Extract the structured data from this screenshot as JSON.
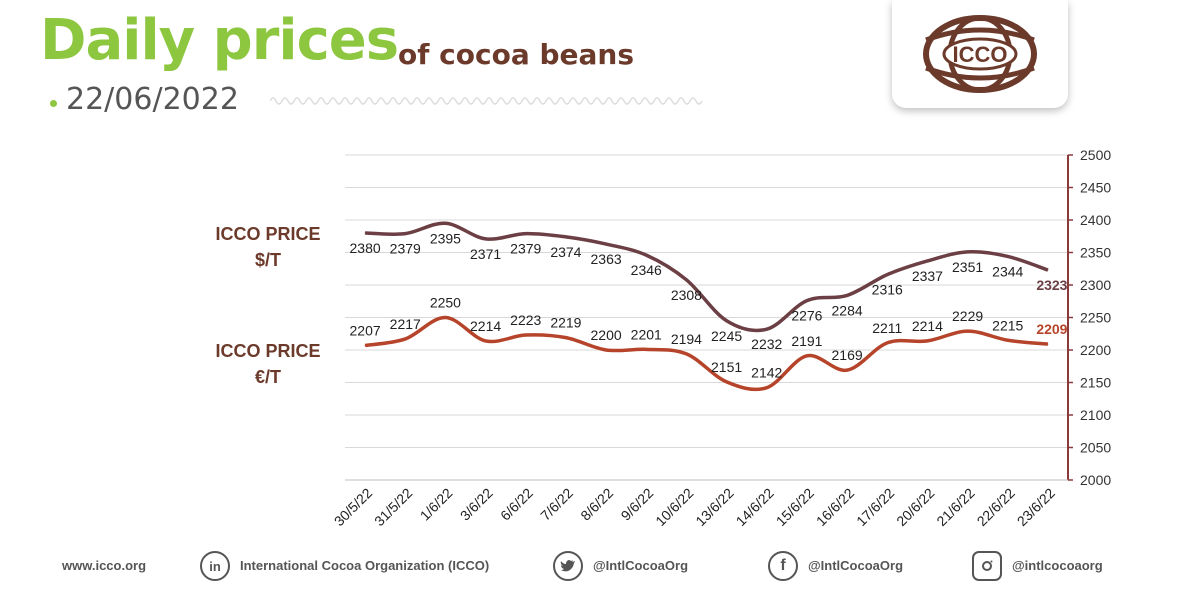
{
  "header": {
    "title": "Daily prices",
    "subtitle": "of cocoa beans",
    "date": "22/06/2022",
    "logo_text": "ICCO"
  },
  "labels": {
    "usd_line1": "ICCO PRICE",
    "usd_line2": "$/T",
    "eur_line1": "ICCO PRICE",
    "eur_line2": "€/T"
  },
  "colors": {
    "brand_green": "#8dc63f",
    "brand_brown": "#6b3a2a",
    "usd_series": "#6b3f44",
    "eur_series": "#b5442a",
    "axis": "#8b3a3a"
  },
  "chart_data": {
    "type": "line",
    "categories": [
      "30/5/22",
      "31/5/22",
      "1/6/22",
      "3/6/22",
      "6/6/22",
      "7/6/22",
      "8/6/22",
      "9/6/22",
      "10/6/22",
      "13/6/22",
      "14/6/22",
      "15/6/22",
      "16/6/22",
      "17/6/22",
      "20/6/22",
      "21/6/22",
      "22/6/22",
      "23/6/22"
    ],
    "series": [
      {
        "name": "ICCO PRICE $/T",
        "values": [
          2380,
          2379,
          2395,
          2371,
          2379,
          2374,
          2363,
          2346,
          2308,
          2245,
          2232,
          2276,
          2284,
          2316,
          2337,
          2351,
          2344,
          2323
        ]
      },
      {
        "name": "ICCO PRICE €/T",
        "values": [
          2207,
          2217,
          2250,
          2214,
          2223,
          2219,
          2200,
          2201,
          2194,
          2151,
          2142,
          2191,
          2169,
          2211,
          2214,
          2229,
          2215,
          2209
        ]
      }
    ],
    "ylim": [
      2000,
      2500
    ],
    "yticks": [
      2000,
      2050,
      2100,
      2150,
      2200,
      2250,
      2300,
      2350,
      2400,
      2450,
      2500
    ],
    "y_axis_side": "right",
    "grid": true
  },
  "footer": {
    "website": "www.icco.org",
    "linkedin": "International Cocoa Organization (ICCO)",
    "twitter": "@IntlCocoaOrg",
    "facebook": "@IntlCocoaOrg",
    "instagram": "@intlcocoaorg"
  }
}
